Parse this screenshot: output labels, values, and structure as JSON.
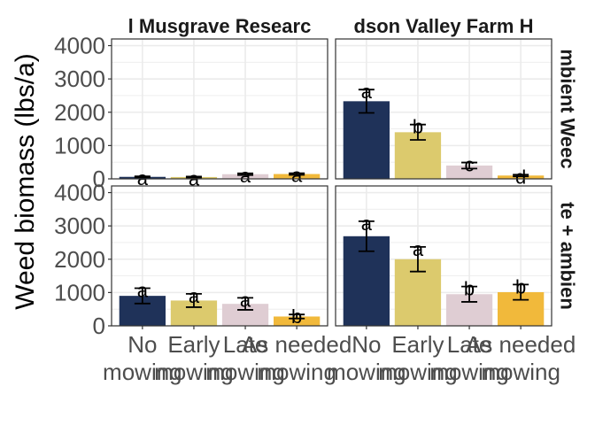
{
  "chart_data": {
    "type": "bar",
    "ylabel": "Weed biomass (lbs/a)",
    "ylim": [
      0,
      4200
    ],
    "yticks": [
      0,
      1000,
      2000,
      3000,
      4000
    ],
    "yticks_label": [
      "0",
      "1000",
      "2000",
      "3000",
      "4000"
    ],
    "grid": true,
    "categories": [
      "No\nmowing",
      "Early\nmowing",
      "Late\nmowing",
      "As needed\nmowing"
    ],
    "colors": [
      "#1f3259",
      "#dcca6d",
      "#dfcdd3",
      "#f1b93b"
    ],
    "columns": [
      "Musgrave Research Farm",
      "Hudson Valley Farm Hub"
    ],
    "rows": [
      "Ambient Weeds",
      "Ambient Weeds + Seedbank"
    ],
    "column_strip_shown": [
      "l Musgrave Researc",
      "dson Valley Farm H"
    ],
    "row_strip_shown": [
      "mbient Weec",
      "te + ambien"
    ],
    "panels": [
      {
        "row": 0,
        "col": 0,
        "values": [
          60,
          55,
          140,
          145
        ],
        "errors": [
          15,
          15,
          25,
          25
        ],
        "letters": [
          "a",
          "a",
          "a",
          "a"
        ]
      },
      {
        "row": 0,
        "col": 1,
        "values": [
          2330,
          1400,
          400,
          100
        ],
        "errors": [
          350,
          230,
          90,
          25
        ],
        "letters": [
          "a",
          "b",
          "c",
          "d"
        ]
      },
      {
        "row": 1,
        "col": 0,
        "values": [
          900,
          760,
          660,
          280
        ],
        "errors": [
          230,
          200,
          180,
          60
        ],
        "letters": [
          "a",
          "a",
          "a",
          "b"
        ]
      },
      {
        "row": 1,
        "col": 1,
        "values": [
          2690,
          2000,
          950,
          1010
        ],
        "errors": [
          450,
          370,
          230,
          230
        ],
        "letters": [
          "a",
          "a",
          "b",
          "b"
        ]
      }
    ]
  }
}
